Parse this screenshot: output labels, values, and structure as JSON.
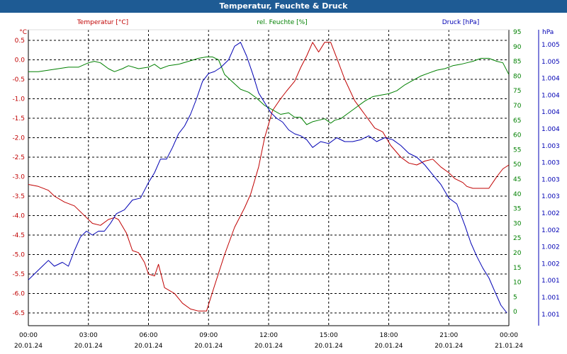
{
  "title": "Temperatur, Feuchte & Druck",
  "colors": {
    "title_bg": "#1e5b94",
    "temperature": "#c00000",
    "humidity": "#008000",
    "pressure": "#0000b4",
    "grid": "#000000"
  },
  "chart_data": {
    "type": "line",
    "title": "Temperatur, Feuchte & Druck",
    "grid": true,
    "x_ticks": [
      {
        "time": "00:00",
        "date": "20.01.24"
      },
      {
        "time": "03:00",
        "date": "20.01.24"
      },
      {
        "time": "06:00",
        "date": "20.01.24"
      },
      {
        "time": "09:00",
        "date": "20.01.24"
      },
      {
        "time": "12:00",
        "date": "20.01.24"
      },
      {
        "time": "15:00",
        "date": "20.01.24"
      },
      {
        "time": "18:00",
        "date": "20.01.24"
      },
      {
        "time": "21:00",
        "date": "20.01.24"
      },
      {
        "time": "00:00",
        "date": "21.01.24"
      }
    ],
    "x_range_hours": [
      0,
      24
    ],
    "axes": {
      "temperature": {
        "label": "Temperatur [°C]",
        "unit": "°C",
        "range": [
          -7.0,
          0.5
        ],
        "ticks": [
          "0.5",
          "0.0",
          "-0.5",
          "-1.0",
          "-1.5",
          "-2.0",
          "-2.5",
          "-3.0",
          "-3.5",
          "-4.0",
          "-4.5",
          "-5.0",
          "-5.5",
          "-6.0",
          "-6.5"
        ]
      },
      "humidity": {
        "label": "rel. Feuchte [%]",
        "unit": "%",
        "range": [
          0,
          95
        ],
        "ticks": [
          "95",
          "90",
          "85",
          "80",
          "75",
          "70",
          "65",
          "60",
          "55",
          "50",
          "45",
          "40",
          "35",
          "30",
          "25",
          "20",
          "15",
          "10",
          "5",
          "0"
        ]
      },
      "pressure": {
        "label": "Druck [hPa]",
        "unit": "hPa",
        "ticks": [
          "1.005",
          "1.005",
          "1.004",
          "1.004",
          "1.004",
          "1.004",
          "1.003",
          "1.003",
          "1.003",
          "1.003",
          "1.002",
          "1.002",
          "1.002",
          "1.002",
          "1.001",
          "1.001",
          "1.001"
        ]
      }
    },
    "series": [
      {
        "name": "Temperatur [°C]",
        "axis": "temperature",
        "color": "#c00000",
        "x": [
          0,
          0.5,
          1,
          1.3,
          1.8,
          2.3,
          2.7,
          3.2,
          3.6,
          4.0,
          4.3,
          4.5,
          4.9,
          5.2,
          5.5,
          5.8,
          6.0,
          6.3,
          6.5,
          6.8,
          7.3,
          7.7,
          8.1,
          8.5,
          8.9,
          9.3,
          9.8,
          10.3,
          10.8,
          11.1,
          11.5,
          11.8,
          12.2,
          12.6,
          12.9,
          13.3,
          13.6,
          13.9,
          14.2,
          14.5,
          14.8,
          15.1,
          15.4,
          15.8,
          16.3,
          16.8,
          17.3,
          17.7,
          18.1,
          18.6,
          19.0,
          19.4,
          19.8,
          20.2,
          20.6,
          21.0,
          21.3,
          21.7,
          21.9,
          22.2,
          22.6,
          23.0,
          23.4,
          23.7,
          24.0
        ],
        "y": [
          -3.2,
          -3.25,
          -3.35,
          -3.5,
          -3.65,
          -3.75,
          -3.95,
          -4.2,
          -4.25,
          -4.1,
          -4.05,
          -4.1,
          -4.45,
          -4.9,
          -4.95,
          -5.2,
          -5.5,
          -5.55,
          -5.25,
          -5.85,
          -6.0,
          -6.25,
          -6.4,
          -6.45,
          -6.45,
          -5.8,
          -5.0,
          -4.3,
          -3.8,
          -3.45,
          -2.75,
          -2.0,
          -1.3,
          -1.0,
          -0.8,
          -0.55,
          -0.2,
          0.1,
          0.45,
          0.2,
          0.45,
          0.45,
          0.05,
          -0.5,
          -1.05,
          -1.4,
          -1.75,
          -1.85,
          -2.2,
          -2.5,
          -2.65,
          -2.7,
          -2.6,
          -2.55,
          -2.75,
          -2.9,
          -3.05,
          -3.15,
          -3.25,
          -3.3,
          -3.3,
          -3.3,
          -3.0,
          -2.8,
          -2.7
        ]
      },
      {
        "name": "rel. Feuchte [%]",
        "axis": "humidity",
        "color": "#008000",
        "x": [
          0,
          0.5,
          1.0,
          1.5,
          2.0,
          2.5,
          3.0,
          3.3,
          3.6,
          4.0,
          4.3,
          4.7,
          5.0,
          5.5,
          6.0,
          6.3,
          6.6,
          7.0,
          7.5,
          8.0,
          8.5,
          8.9,
          9.2,
          9.5,
          9.8,
          10.2,
          10.6,
          11.0,
          11.4,
          11.8,
          12.2,
          12.6,
          13.0,
          13.3,
          13.6,
          13.9,
          14.2,
          14.5,
          14.8,
          15.1,
          15.3,
          15.6,
          16.0,
          16.4,
          16.8,
          17.2,
          17.6,
          18.0,
          18.4,
          18.8,
          19.2,
          19.6,
          20.0,
          20.4,
          20.8,
          21.2,
          21.6,
          21.9,
          22.2,
          22.6,
          23.0,
          23.4,
          23.7,
          24.0
        ],
        "y": [
          81.5,
          81.5,
          82,
          82.5,
          83,
          83,
          84.5,
          85,
          84.5,
          82.5,
          81.5,
          82.5,
          83.5,
          82.5,
          83,
          84,
          82.5,
          83.5,
          84,
          85,
          86,
          86.5,
          86.5,
          85.5,
          80.5,
          78,
          75.5,
          74.5,
          72.5,
          70,
          68.5,
          67,
          67.5,
          66,
          66,
          63.5,
          64.5,
          65,
          65.5,
          64,
          65,
          65.5,
          67.5,
          69.5,
          71.5,
          73,
          73.5,
          74,
          75,
          77,
          78.5,
          80,
          81,
          82,
          82.5,
          83.5,
          84,
          84.5,
          85,
          86,
          86,
          85,
          84.5,
          80.5
        ]
      },
      {
        "name": "Druck [hPa]",
        "axis": "pressure",
        "color": "#0000b4",
        "x": [
          0,
          0.3,
          0.7,
          1.0,
          1.3,
          1.7,
          2.0,
          2.3,
          2.6,
          2.9,
          3.2,
          3.5,
          3.8,
          4.1,
          4.4,
          4.8,
          5.2,
          5.6,
          6.0,
          6.3,
          6.6,
          6.9,
          7.2,
          7.5,
          7.8,
          8.1,
          8.4,
          8.7,
          9.0,
          9.3,
          9.6,
          10.0,
          10.3,
          10.6,
          10.9,
          11.2,
          11.5,
          11.8,
          12.1,
          12.4,
          12.7,
          13.0,
          13.3,
          13.6,
          13.9,
          14.2,
          14.6,
          15.0,
          15.4,
          15.8,
          16.2,
          16.6,
          17.0,
          17.4,
          17.8,
          18.2,
          18.6,
          19.0,
          19.4,
          19.8,
          20.2,
          20.6,
          21.0,
          21.4,
          21.8,
          22.1,
          22.4,
          22.7,
          23.0,
          23.3,
          23.6,
          23.9
        ],
        "y": [
          -5.65,
          -5.5,
          -5.3,
          -5.15,
          -5.3,
          -5.2,
          -5.3,
          -4.9,
          -4.55,
          -4.4,
          -4.5,
          -4.4,
          -4.4,
          -4.2,
          -3.95,
          -3.85,
          -3.6,
          -3.55,
          -3.15,
          -2.9,
          -2.55,
          -2.55,
          -2.25,
          -1.9,
          -1.7,
          -1.4,
          -1.0,
          -0.55,
          -0.35,
          -0.3,
          -0.2,
          0.0,
          0.35,
          0.45,
          0.1,
          -0.35,
          -0.85,
          -1.1,
          -1.35,
          -1.5,
          -1.6,
          -1.8,
          -1.9,
          -1.95,
          -2.05,
          -2.25,
          -2.1,
          -2.15,
          -2.0,
          -2.1,
          -2.1,
          -2.05,
          -1.95,
          -2.1,
          -2.0,
          -2.05,
          -2.2,
          -2.4,
          -2.5,
          -2.7,
          -2.95,
          -3.2,
          -3.55,
          -3.7,
          -4.25,
          -4.7,
          -5.05,
          -5.35,
          -5.6,
          -5.95,
          -6.3,
          -6.5
        ]
      }
    ]
  }
}
